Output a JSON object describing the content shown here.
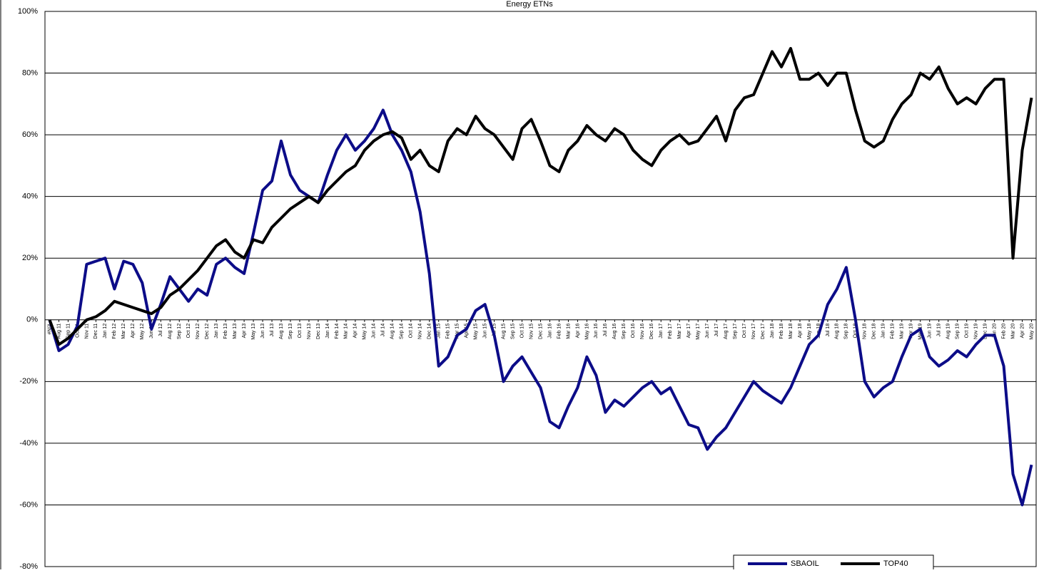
{
  "chart_data": {
    "type": "line",
    "title": "Energy ETNs",
    "categories": [
      "#N/A",
      "Aug 11",
      "Sep 11",
      "Oct 11",
      "Nov 11",
      "Dec 11",
      "Jan 12",
      "Feb 12",
      "Mar 12",
      "Apr 12",
      "May 12",
      "Jun 12",
      "Jul 12",
      "Aug 12",
      "Sep 12",
      "Oct 12",
      "Nov 12",
      "Dec 12",
      "Jan 13",
      "Feb 13",
      "Mar 13",
      "Apr 13",
      "May 13",
      "Jun 13",
      "Jul 13",
      "Aug 13",
      "Sep 13",
      "Oct 13",
      "Nov 13",
      "Dec 13",
      "Jan 14",
      "Feb 14",
      "Mar 14",
      "Apr 14",
      "May 14",
      "Jun 14",
      "Jul 14",
      "Aug 14",
      "Sep 14",
      "Oct 14",
      "Nov 14",
      "Dec 14",
      "Jan 15",
      "Feb 15",
      "Mar 15",
      "Apr 15",
      "May 15",
      "Jun 15",
      "Jul 15",
      "Aug 15",
      "Sep 15",
      "Oct 15",
      "Nov 15",
      "Dec 15",
      "Jan 16",
      "Feb 16",
      "Mar 16",
      "Apr 16",
      "May 16",
      "Jun 16",
      "Jul 16",
      "Aug 16",
      "Sep 16",
      "Oct 16",
      "Nov 16",
      "Dec 16",
      "Jan 17",
      "Feb 17",
      "Mar 17",
      "Apr 17",
      "May 17",
      "Jun 17",
      "Jul 17",
      "Aug 17",
      "Sep 17",
      "Oct 17",
      "Nov 17",
      "Dec 17",
      "Jan 18",
      "Feb 18",
      "Mar 18",
      "Apr 18",
      "May 18",
      "Jun 18",
      "Jul 18",
      "Aug 18",
      "Sep 18",
      "Oct 18",
      "Nov 18",
      "Dec 18",
      "Jan 19",
      "Feb 19",
      "Mar 19",
      "Apr 19",
      "May 19",
      "Jun 19",
      "Jul 19",
      "Aug 19",
      "Sep 19",
      "Oct 19",
      "Nov 19",
      "Dec 19",
      "Jan 20",
      "Feb 20",
      "Mar 20",
      "Apr 20",
      "May 20"
    ],
    "series": [
      {
        "name": "SBAOIL",
        "color": "#0c0c88",
        "values": [
          0,
          -10,
          -8,
          -2,
          18,
          19,
          20,
          10,
          19,
          18,
          12,
          -3,
          5,
          14,
          10,
          6,
          10,
          8,
          18,
          20,
          17,
          15,
          28,
          42,
          45,
          58,
          47,
          42,
          40,
          38,
          47,
          55,
          60,
          55,
          58,
          62,
          68,
          60,
          55,
          48,
          35,
          15,
          -15,
          -12,
          -5,
          -3,
          3,
          5,
          -5,
          -20,
          -15,
          -12,
          -17,
          -22,
          -33,
          -35,
          -28,
          -22,
          -12,
          -18,
          -30,
          -26,
          -28,
          -25,
          -22,
          -20,
          -24,
          -22,
          -28,
          -34,
          -35,
          -42,
          -38,
          -35,
          -30,
          -25,
          -20,
          -23,
          -25,
          -27,
          -22,
          -15,
          -8,
          -5,
          5,
          10,
          17,
          0,
          -20,
          -25,
          -22,
          -20,
          -12,
          -5,
          -3,
          -12,
          -15,
          -13,
          -10,
          -12,
          -8,
          -5,
          -5,
          -15,
          -50,
          -60,
          -47
        ]
      },
      {
        "name": "TOP40",
        "color": "#000000",
        "values": [
          0,
          -8,
          -6,
          -3,
          0,
          1,
          3,
          6,
          5,
          4,
          3,
          2,
          4,
          8,
          10,
          13,
          16,
          20,
          24,
          26,
          22,
          20,
          26,
          25,
          30,
          33,
          36,
          38,
          40,
          38,
          42,
          45,
          48,
          50,
          55,
          58,
          60,
          61,
          59,
          52,
          55,
          50,
          48,
          58,
          62,
          60,
          66,
          62,
          60,
          56,
          52,
          62,
          65,
          58,
          50,
          48,
          55,
          58,
          63,
          60,
          58,
          62,
          60,
          55,
          52,
          50,
          55,
          58,
          60,
          57,
          58,
          62,
          66,
          58,
          68,
          72,
          73,
          80,
          87,
          82,
          88,
          78,
          78,
          80,
          76,
          80,
          80,
          68,
          58,
          56,
          58,
          65,
          70,
          73,
          80,
          78,
          82,
          75,
          70,
          72,
          70,
          75,
          78,
          78,
          20,
          55,
          72
        ]
      }
    ],
    "ylim": [
      -80,
      100
    ],
    "yticks": [
      {
        "value": -80,
        "label": "-80%"
      },
      {
        "value": -60,
        "label": "-60%"
      },
      {
        "value": -40,
        "label": "-40%"
      },
      {
        "value": -20,
        "label": "-20%"
      },
      {
        "value": 0,
        "label": "0%"
      },
      {
        "value": 20,
        "label": "20%"
      },
      {
        "value": 40,
        "label": "40%"
      },
      {
        "value": 60,
        "label": "60%"
      },
      {
        "value": 80,
        "label": "80%"
      },
      {
        "value": 100,
        "label": "100%"
      }
    ],
    "grid": true,
    "legend": "bottom"
  }
}
